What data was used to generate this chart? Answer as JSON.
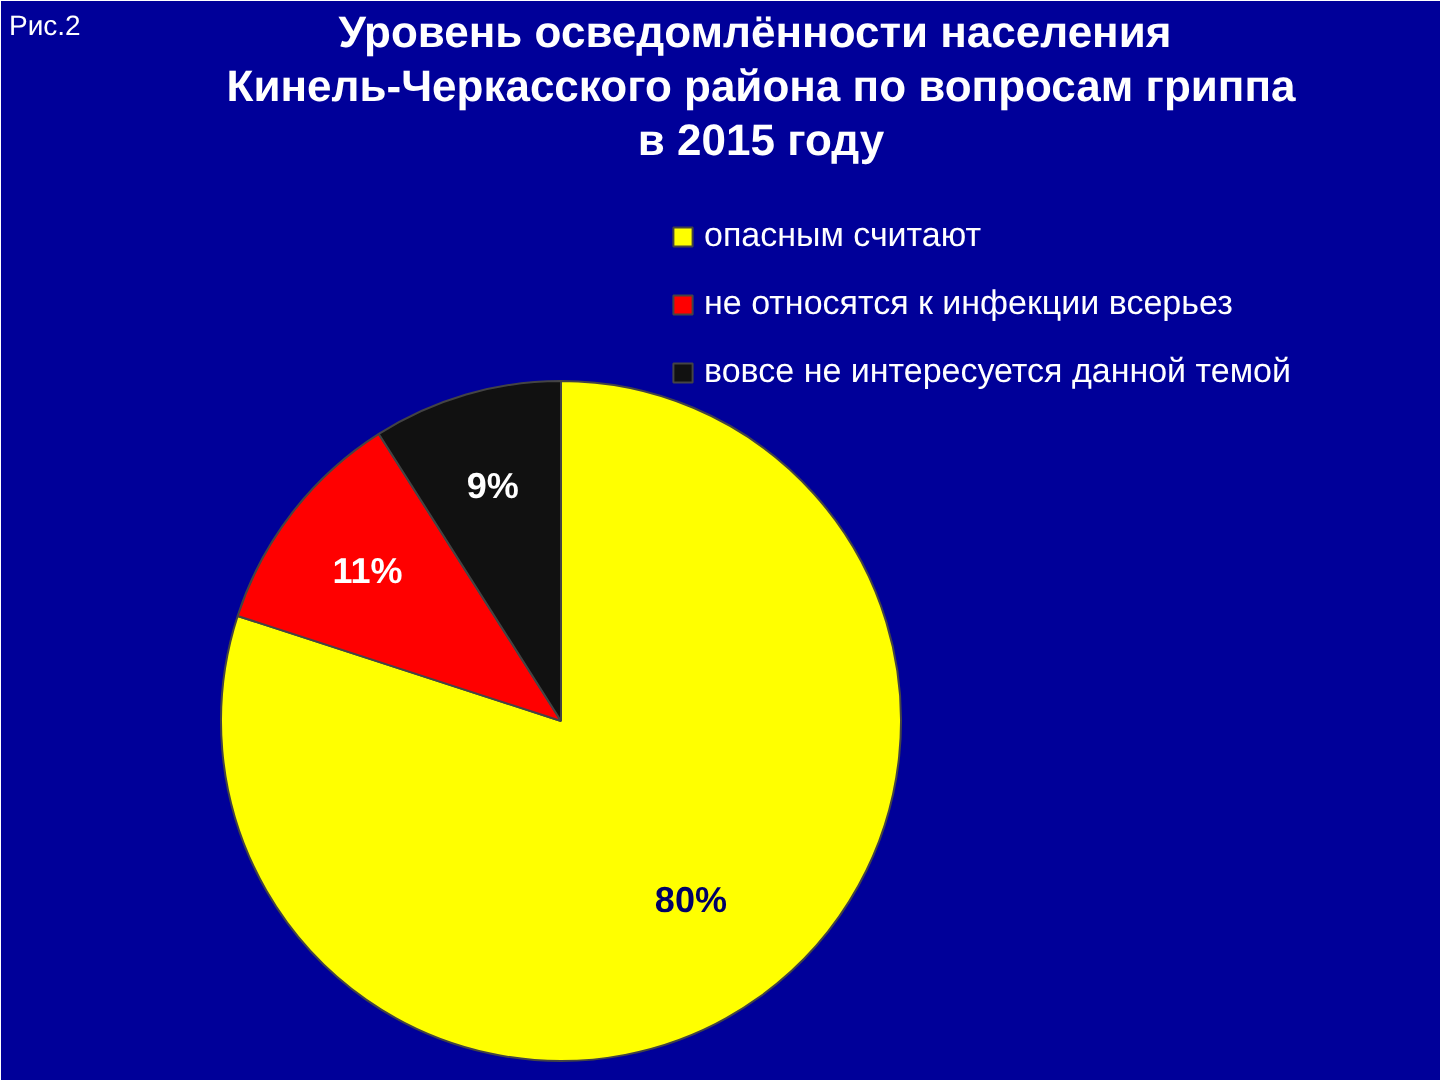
{
  "chart_data": {
    "type": "pie",
    "title": "Уровень  осведомлённости населения\nКинель-Черкасского района по вопросам гриппа\nв 2015 году",
    "categories": [
      "опасным считают",
      "не относятся к инфекции всерьез",
      "вовсе не интересуется данной темой"
    ],
    "values": [
      80,
      11,
      9
    ],
    "colors": [
      "#ffff00",
      "#ff0000",
      "#111111"
    ],
    "value_labels": [
      "80%",
      "11%",
      "9%"
    ],
    "legend": "top right",
    "annotations": [
      "Рис.2"
    ]
  }
}
